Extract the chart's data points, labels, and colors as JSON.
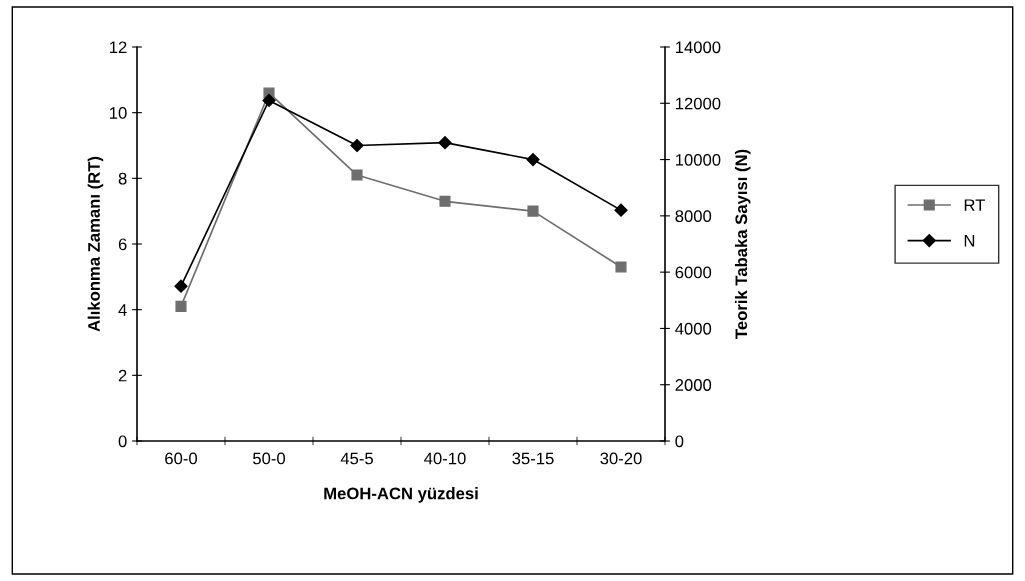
{
  "chart_data": {
    "type": "line",
    "xlabel": "MeOH-ACN yüzdesi",
    "ylabel": "Alıkonma Zamanı (RT)",
    "y2label": "Teorik Tabaka Sayısı (N)",
    "categories": [
      "60-0",
      "50-0",
      "45-5",
      "40-10",
      "35-15",
      "30-20"
    ],
    "series": [
      {
        "name": "RT",
        "color": "#6e6e6e",
        "marker": "square",
        "values": [
          4.1,
          10.6,
          8.1,
          7.3,
          7.0,
          5.3
        ]
      },
      {
        "name": "N",
        "color": "#000000",
        "marker": "diamond",
        "axis": "y2",
        "values": [
          5500,
          12100,
          10500,
          10600,
          10000,
          8200
        ]
      }
    ],
    "ylim": [
      0,
      12
    ],
    "yticks": [
      0,
      2,
      4,
      6,
      8,
      10,
      12
    ],
    "y2lim": [
      0,
      14000
    ],
    "y2ticks": [
      0,
      2000,
      4000,
      6000,
      8000,
      10000,
      12000,
      14000
    ],
    "grid": false,
    "legend": "right",
    "line_style": "solid"
  }
}
